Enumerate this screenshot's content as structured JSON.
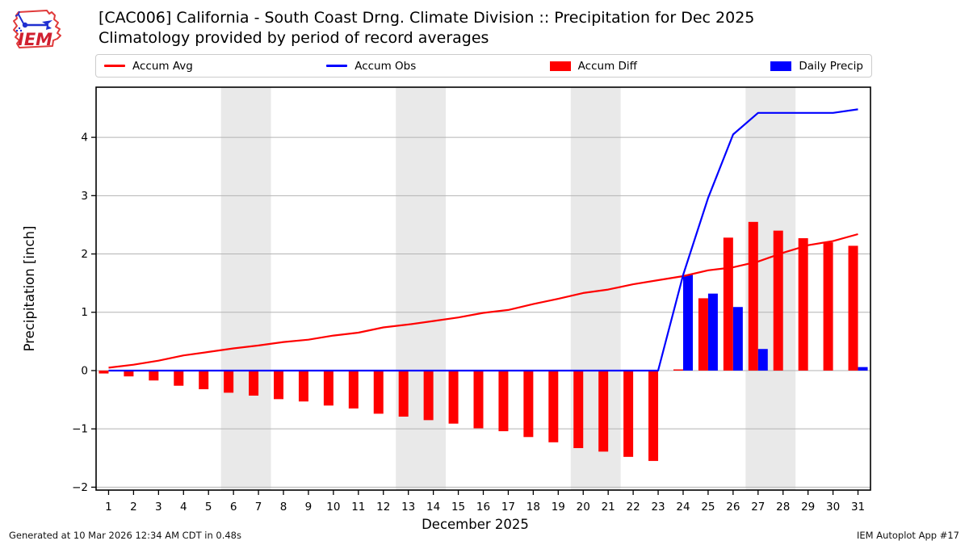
{
  "header": {
    "title_line1": "[CAC006] California - South Coast Drng. Climate Division :: Precipitation for Dec 2025",
    "title_line2": "Climatology provided by period of record averages",
    "logo_text": "IEM"
  },
  "legend": {
    "items": [
      {
        "label": "Accum Avg",
        "swatch": "line",
        "color": "#ff0000"
      },
      {
        "label": "Accum Obs",
        "swatch": "line",
        "color": "#0000ff"
      },
      {
        "label": "Accum Diff",
        "swatch": "rect",
        "color": "#ff0000"
      },
      {
        "label": "Daily Precip",
        "swatch": "rect",
        "color": "#0000ff"
      }
    ]
  },
  "footer": {
    "left": "Generated at 10 Mar 2026 12:34 AM CDT in 0.48s",
    "right": "IEM Autoplot App #17"
  },
  "chart_data": {
    "type": "bar",
    "subtype": "bar+line combo",
    "xlabel": "December 2025",
    "ylabel": "Precipitation [inch]",
    "categories": [
      1,
      2,
      3,
      4,
      5,
      6,
      7,
      8,
      9,
      10,
      11,
      12,
      13,
      14,
      15,
      16,
      17,
      18,
      19,
      20,
      21,
      22,
      23,
      24,
      25,
      26,
      27,
      28,
      29,
      30,
      31
    ],
    "xlim": [
      0.5,
      31.5
    ],
    "ylim": [
      -2.05,
      4.86
    ],
    "yticks": [
      -2,
      -1,
      0,
      1,
      2,
      3,
      4
    ],
    "grid": true,
    "weekend_bands": [
      [
        5.5,
        7.5
      ],
      [
        12.5,
        14.5
      ],
      [
        19.5,
        21.5
      ],
      [
        26.5,
        28.5
      ]
    ],
    "band_color": "#e9e9e9",
    "grid_color": "#b3b3b3",
    "series": [
      {
        "name": "Accum Avg",
        "type": "line",
        "color": "#ff0000",
        "values": [
          0.05,
          0.1,
          0.17,
          0.26,
          0.32,
          0.38,
          0.43,
          0.49,
          0.53,
          0.6,
          0.65,
          0.74,
          0.79,
          0.85,
          0.91,
          0.99,
          1.04,
          1.14,
          1.23,
          1.33,
          1.39,
          1.48,
          1.55,
          1.62,
          1.72,
          1.77,
          1.87,
          2.02,
          2.15,
          2.22,
          2.34
        ]
      },
      {
        "name": "Accum Obs",
        "type": "line",
        "color": "#0000ff",
        "values": [
          0,
          0,
          0,
          0,
          0,
          0,
          0,
          0,
          0,
          0,
          0,
          0,
          0,
          0,
          0,
          0,
          0,
          0,
          0,
          0,
          0,
          0,
          0,
          1.64,
          2.96,
          4.05,
          4.42,
          4.42,
          4.42,
          4.42,
          4.48
        ]
      },
      {
        "name": "Accum Diff",
        "type": "bar",
        "color": "#ff0000",
        "side": "left",
        "values": [
          -0.05,
          -0.1,
          -0.17,
          -0.26,
          -0.32,
          -0.38,
          -0.43,
          -0.49,
          -0.53,
          -0.6,
          -0.65,
          -0.74,
          -0.79,
          -0.85,
          -0.91,
          -0.99,
          -1.04,
          -1.14,
          -1.23,
          -1.33,
          -1.39,
          -1.48,
          -1.55,
          0.02,
          1.24,
          2.28,
          2.55,
          2.4,
          2.27,
          2.2,
          2.14
        ]
      },
      {
        "name": "Daily Precip",
        "type": "bar",
        "color": "#0000ff",
        "side": "right",
        "values": [
          0,
          0,
          0,
          0,
          0,
          0,
          0,
          0,
          0,
          0,
          0,
          0,
          0,
          0,
          0,
          0,
          0,
          0,
          0,
          0,
          0,
          0,
          0,
          1.64,
          1.32,
          1.09,
          0.37,
          0,
          0,
          0,
          0.06
        ]
      }
    ]
  }
}
